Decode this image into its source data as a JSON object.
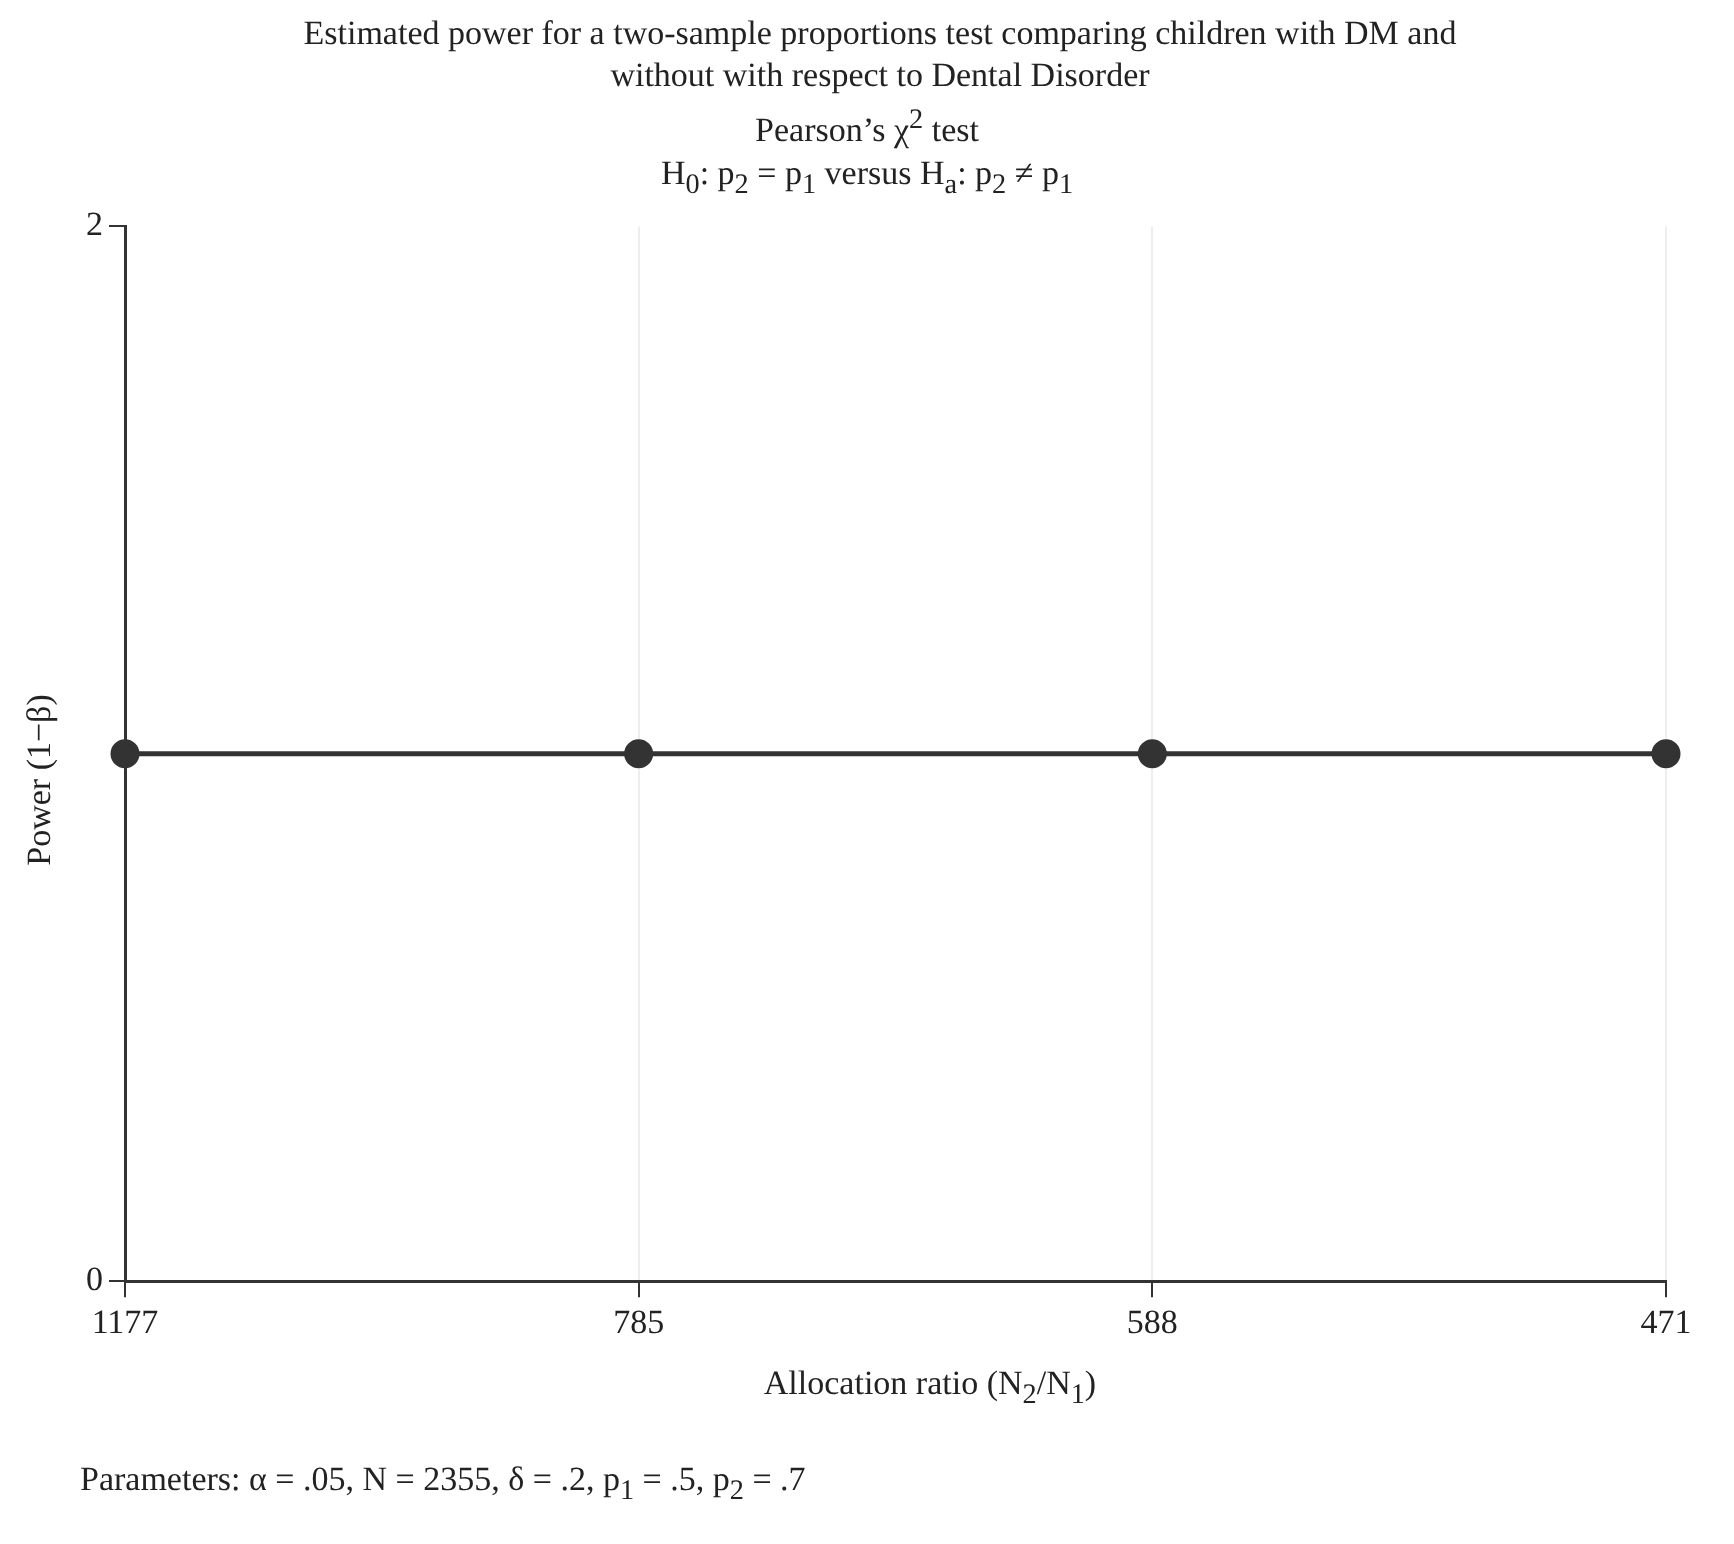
{
  "chart_data": {
    "type": "line",
    "title": "Estimated power for a two-sample proportions test comparing children with DM and without with respect to Dental Disorder",
    "subtitle": [
      "Pearson’s χ$^{2}$ test",
      "H$_{0}$: p$_{2}$ = p$_{1}$ versus H$_{a}$: p$_{2}$ ≠ p$_{1}$"
    ],
    "xlabel": "Allocation ratio (N$_{2}$/N$_{1}$)",
    "ylabel": "Power (1−β)",
    "annotations": [
      "Parameters: α = .05, N = 2355, δ = .2, p$_{1}$ = .5, p$_{2}$ = .7"
    ],
    "categories": [
      "1177",
      "785",
      "588",
      "471"
    ],
    "series": [
      {
        "color": "#333333",
        "values": [
          1,
          1,
          1,
          1
        ]
      }
    ],
    "ylim": [
      0,
      2
    ],
    "yticks": [
      0,
      2
    ],
    "grid": "x",
    "legend": false,
    "marker": "circle",
    "line_style": "solid"
  }
}
